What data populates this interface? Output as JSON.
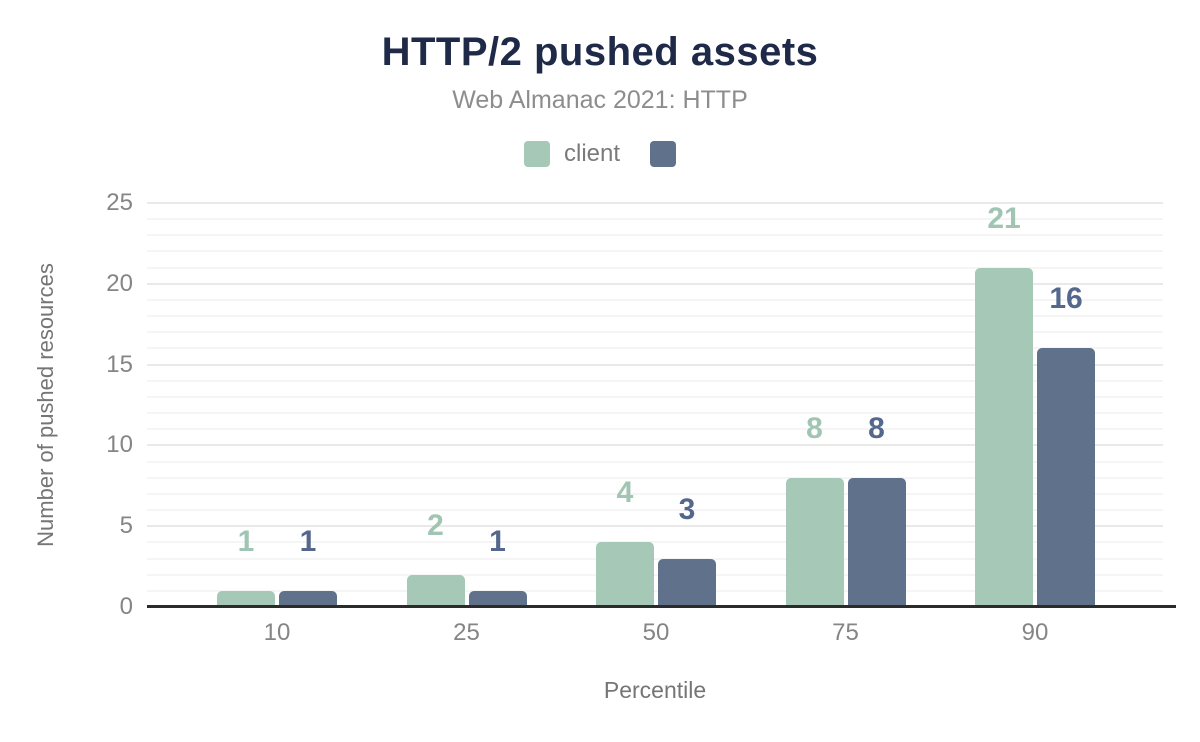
{
  "header": {
    "title": "HTTP/2 pushed assets",
    "subtitle": "Web Almanac 2021: HTTP"
  },
  "chart_data": {
    "type": "bar",
    "title": "HTTP/2 pushed assets",
    "subtitle": "Web Almanac 2021: HTTP",
    "categories": [
      "10",
      "25",
      "50",
      "75",
      "90"
    ],
    "series": [
      {
        "name": "client",
        "color": "#a6c8b6",
        "label_color": "#a0c5b2",
        "values": [
          1,
          2,
          4,
          8,
          21
        ]
      },
      {
        "name": "",
        "color": "#60718b",
        "label_color": "#54678c",
        "values": [
          1,
          1,
          3,
          8,
          16
        ]
      }
    ],
    "xlabel": "Percentile",
    "ylabel": "Number of pushed resources",
    "ylim": [
      0,
      25
    ],
    "yticks": [
      0,
      5,
      10,
      15,
      20,
      25
    ],
    "grid": {
      "minor_every": 1,
      "major_every": 5,
      "minor_color": "#f5f5f5",
      "major_color": "#e9e9e9"
    },
    "legend_position": "top",
    "data_labels": true,
    "colors": {
      "title": "#1e2a47",
      "subtitle": "#8d8d8d",
      "axis_text": "#858585",
      "axis_line": "#2b2b2b"
    }
  }
}
